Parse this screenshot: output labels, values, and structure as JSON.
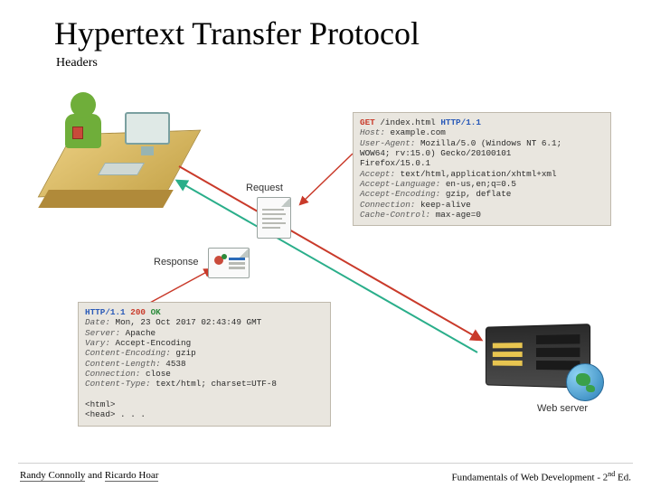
{
  "slide": {
    "title": "Hypertext Transfer Protocol",
    "subtitle": "Headers",
    "title_fontsize": 36,
    "subtitle_fontsize": 14,
    "background_color": "#ffffff"
  },
  "footer": {
    "authors_left": "Randy Connolly",
    "authors_and": " and ",
    "authors_right": "Ricardo Hoar",
    "book_pre": "Fundamentals of Web Development - 2",
    "book_sup": "nd",
    "book_post": " Ed."
  },
  "diagram": {
    "type": "network",
    "labels": {
      "request": "Request",
      "response": "Response",
      "webserver": "Web server"
    },
    "arrows": {
      "request_color": "#c93a2a",
      "response_color": "#2aae8a",
      "stroke_width": 2
    },
    "colors": {
      "box_bg": "#e9e6df",
      "box_border": "#bfb9ac",
      "desk": "#c9a84f",
      "person": "#6fae3a",
      "server_body": "#3a3a3a",
      "globe": "#2a7fb8",
      "red": "#c93a2a",
      "blue": "#2a5ab8",
      "green": "#2a8a3a",
      "italic": "#5a5a5a"
    },
    "request_box": {
      "method": "GET",
      "path": "/index.html",
      "version": "HTTP/1.1",
      "lines": [
        [
          "Host:",
          " example.com"
        ],
        [
          "User-Agent:",
          " Mozilla/5.0 (Windows NT 6.1; WOW64; rv:15.0) Gecko/20100101 Firefox/15.0.1"
        ],
        [
          "Accept:",
          " text/html,application/xhtml+xml"
        ],
        [
          "Accept-Language:",
          " en-us,en;q=0.5"
        ],
        [
          "Accept-Encoding:",
          " gzip, deflate"
        ],
        [
          "Connection:",
          " keep-alive"
        ],
        [
          "Cache-Control:",
          " max-age=0"
        ]
      ]
    },
    "response_box": {
      "version": "HTTP/1.1",
      "code": "200",
      "status": "OK",
      "lines": [
        [
          "Date:",
          " Mon, 23 Oct 2017 02:43:49 GMT"
        ],
        [
          "Server:",
          " Apache"
        ],
        [
          "Vary:",
          " Accept-Encoding"
        ],
        [
          "Content-Encoding:",
          " gzip"
        ],
        [
          "Content-Length:",
          " 4538"
        ],
        [
          "Connection:",
          " close"
        ],
        [
          "Content-Type:",
          " text/html; charset=UTF-8"
        ]
      ],
      "body_preview": "<html>\n<head> . . ."
    }
  }
}
